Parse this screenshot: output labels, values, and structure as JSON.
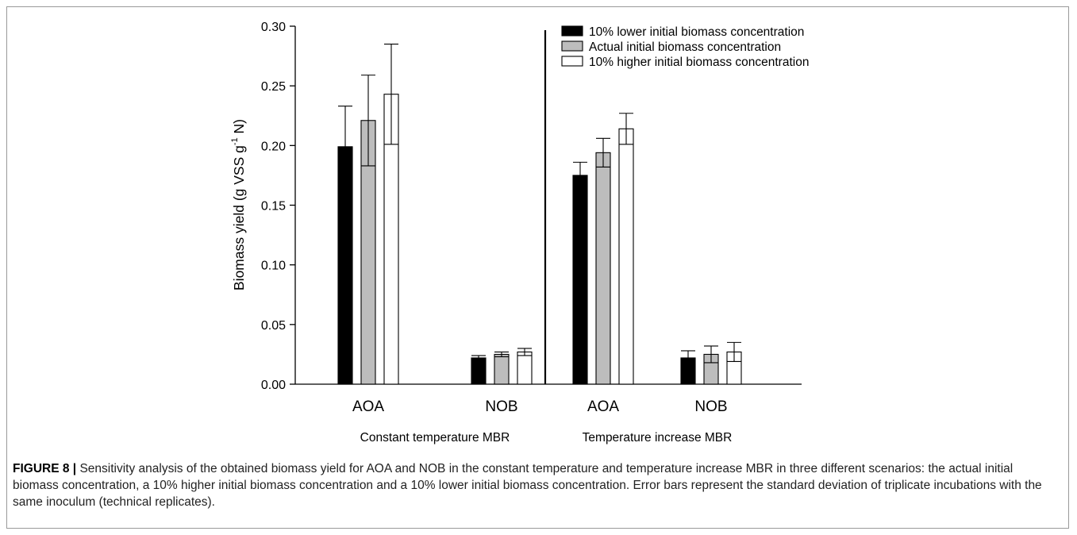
{
  "chart_data": {
    "type": "bar",
    "ylabel_main": "Biomass yield (g VSS g",
    "ylabel_sup": "-1",
    "ylabel_end": " N)",
    "ylim": [
      0,
      0.3
    ],
    "yticks": [
      "0.00",
      "0.05",
      "0.10",
      "0.15",
      "0.20",
      "0.25",
      "0.30"
    ],
    "groups": [
      {
        "label": "Constant temperature MBR",
        "categories": [
          "AOA",
          "NOB"
        ]
      },
      {
        "label": "Temperature increase MBR",
        "categories": [
          "AOA",
          "NOB"
        ]
      }
    ],
    "series": [
      {
        "name": "10% lower initial biomass concentration",
        "color": "#000000",
        "values": [
          0.199,
          0.022,
          0.175,
          0.022
        ],
        "errors": [
          0.034,
          0.002,
          0.011,
          0.006
        ]
      },
      {
        "name": "Actual initial biomass concentration",
        "color": "#bdbdbd",
        "values": [
          0.221,
          0.025,
          0.194,
          0.025
        ],
        "errors": [
          0.038,
          0.002,
          0.012,
          0.007
        ]
      },
      {
        "name": "10% higher initial biomass concentration",
        "color": "#ffffff",
        "values": [
          0.243,
          0.027,
          0.214,
          0.027
        ],
        "errors": [
          0.042,
          0.003,
          0.013,
          0.008
        ]
      }
    ],
    "legend_position": "top-right"
  },
  "caption": {
    "label": "FIGURE 8 |",
    "text": " Sensitivity analysis of the obtained biomass yield for AOA and NOB in the constant temperature and temperature increase MBR in three different scenarios: the actual initial biomass concentration, a 10% higher initial biomass concentration and a 10% lower initial biomass concentration. Error bars represent the standard deviation of triplicate incubations with the same inoculum (technical replicates)."
  }
}
